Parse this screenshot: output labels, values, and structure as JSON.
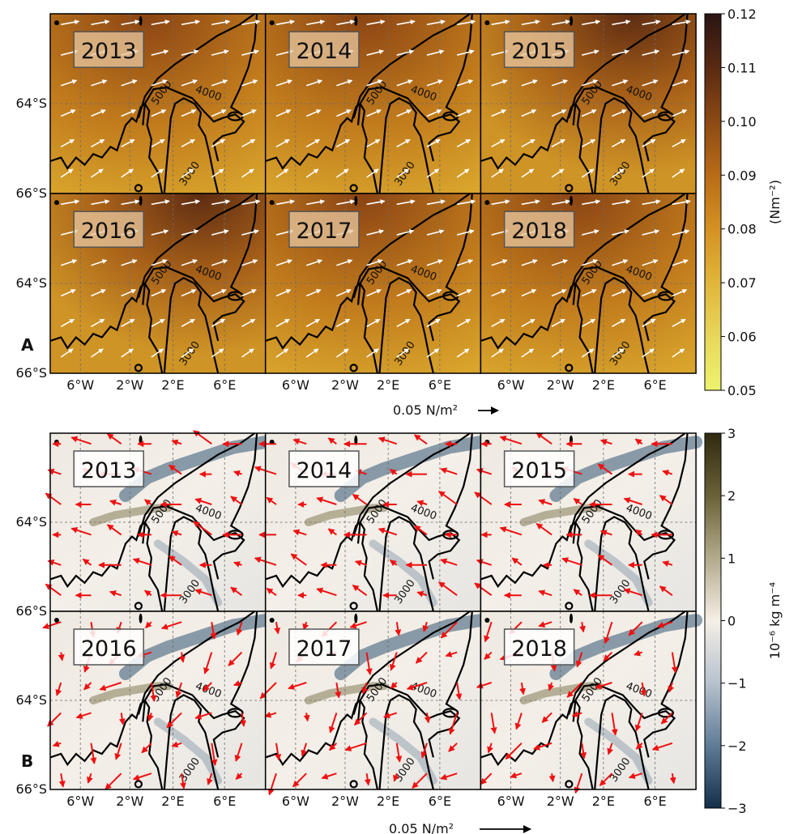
{
  "panels": [
    {
      "letter": "A",
      "years": [
        "2013",
        "2014",
        "2015",
        "2016",
        "2017",
        "2018"
      ],
      "lat_ticks": [
        "64°S",
        "66°S",
        "64°S",
        "66°S"
      ],
      "lon_ticks": [
        "6°W",
        "2°W",
        "2°E",
        "6°E"
      ],
      "contour_labels": [
        "5000",
        "4000",
        "3000"
      ],
      "colorbar": {
        "ticks": [
          "0.12",
          "0.11",
          "0.10",
          "0.09",
          "0.08",
          "0.07",
          "0.06",
          "0.05"
        ],
        "label": "(Nm⁻²)",
        "colors": [
          "#2a1512",
          "#5a2a12",
          "#8c4a14",
          "#b86c16",
          "#d49122",
          "#e0b53a",
          "#e7d75a",
          "#edf36e"
        ]
      },
      "scale_text": "0.05 N/m²",
      "arrow_color": "#ffffff"
    },
    {
      "letter": "B",
      "years": [
        "2013",
        "2014",
        "2015",
        "2016",
        "2017",
        "2018"
      ],
      "lat_ticks": [
        "64°S",
        "66°S",
        "64°S",
        "66°S"
      ],
      "lon_ticks": [
        "6°W",
        "2°W",
        "2°E",
        "6°E"
      ],
      "contour_labels": [
        "5000",
        "4000",
        "3000"
      ],
      "colorbar": {
        "ticks": [
          "3",
          "2",
          "1",
          "0",
          "−1",
          "−2",
          "−3"
        ],
        "label": "10⁻⁶ kg m⁻⁴",
        "colors": [
          "#2f2a10",
          "#6b6136",
          "#b3aa8b",
          "#f5efe6",
          "#b6c2ce",
          "#5f7c96",
          "#142f4a"
        ]
      },
      "scale_text": "0.05 N/m²",
      "arrow_color": "#ee1111"
    }
  ]
}
